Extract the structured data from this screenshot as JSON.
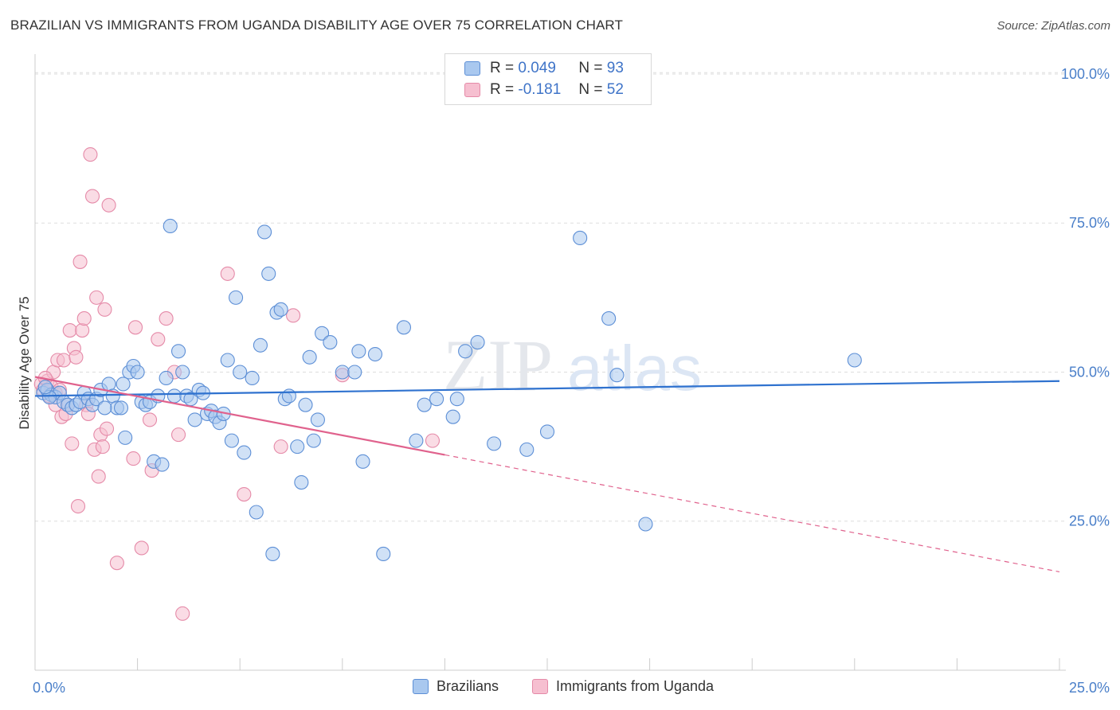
{
  "header": {
    "title": "BRAZILIAN VS IMMIGRANTS FROM UGANDA DISABILITY AGE OVER 75 CORRELATION CHART",
    "source": "Source: ZipAtlas.com"
  },
  "watermark": {
    "zip": "ZIP",
    "atlas": "atlas"
  },
  "colors": {
    "blue_fill": "#a9c8ef",
    "blue_stroke": "#5d8fd6",
    "blue_line": "#2f72cf",
    "pink_fill": "#f6bfd0",
    "pink_stroke": "#e58aa8",
    "pink_line": "#e0628d",
    "tick_text": "#4a7fc9",
    "grid": "#dddddd"
  },
  "legend": {
    "r_label": "R =",
    "n_label": "N =",
    "rows": [
      {
        "r": "0.049",
        "n": "93",
        "swatch": "blue"
      },
      {
        "r": "-0.181",
        "n": "52",
        "swatch": "pink"
      }
    ]
  },
  "chart_data": {
    "type": "scatter",
    "title": "BRAZILIAN VS IMMIGRANTS FROM UGANDA DISABILITY AGE OVER 75 CORRELATION CHART",
    "xlabel": "",
    "ylabel": "Disability Age Over 75",
    "xlim": [
      0,
      25
    ],
    "ylim": [
      0,
      102
    ],
    "x_ticks": [
      {
        "value": 0,
        "label": "0.0%"
      },
      {
        "value": 25,
        "label": "25.0%"
      }
    ],
    "y_ticks": [
      {
        "value": 25,
        "label": "25.0%"
      },
      {
        "value": 50,
        "label": "50.0%"
      },
      {
        "value": 75,
        "label": "75.0%"
      },
      {
        "value": 100,
        "label": "100.0%"
      }
    ],
    "grid": true,
    "legend_position": "top-center",
    "series": [
      {
        "name": "Brazilians",
        "color": "blue",
        "r": 0.049,
        "n": 93,
        "trend": {
          "x_start": 0,
          "y_start": 46.0,
          "x_end": 25,
          "y_end": 48.5,
          "dash_from_x": 25
        },
        "points": [
          [
            0.2,
            46.5
          ],
          [
            0.3,
            47.0
          ],
          [
            0.4,
            46.2
          ],
          [
            0.5,
            45.8
          ],
          [
            0.6,
            46.5
          ],
          [
            0.7,
            45.0
          ],
          [
            0.8,
            44.5
          ],
          [
            0.9,
            44.0
          ],
          [
            1.0,
            44.5
          ],
          [
            1.1,
            45.0
          ],
          [
            1.2,
            46.5
          ],
          [
            1.3,
            45.5
          ],
          [
            1.4,
            44.5
          ],
          [
            1.5,
            45.5
          ],
          [
            1.6,
            47.0
          ],
          [
            1.8,
            48.0
          ],
          [
            1.9,
            46.0
          ],
          [
            2.0,
            44.0
          ],
          [
            2.1,
            44.0
          ],
          [
            2.2,
            39.0
          ],
          [
            2.3,
            50.0
          ],
          [
            2.4,
            51.0
          ],
          [
            2.5,
            50.0
          ],
          [
            2.6,
            45.0
          ],
          [
            2.7,
            44.5
          ],
          [
            2.8,
            45.0
          ],
          [
            2.9,
            35.0
          ],
          [
            3.0,
            46.0
          ],
          [
            3.1,
            34.5
          ],
          [
            3.2,
            49.0
          ],
          [
            3.3,
            74.5
          ],
          [
            3.4,
            46.0
          ],
          [
            3.5,
            53.5
          ],
          [
            3.6,
            50.0
          ],
          [
            3.7,
            46.0
          ],
          [
            3.8,
            45.5
          ],
          [
            3.9,
            42.0
          ],
          [
            4.0,
            47.0
          ],
          [
            4.1,
            46.5
          ],
          [
            4.2,
            43.0
          ],
          [
            4.3,
            43.5
          ],
          [
            4.4,
            42.5
          ],
          [
            4.5,
            41.5
          ],
          [
            4.6,
            43.0
          ],
          [
            4.7,
            52.0
          ],
          [
            4.8,
            38.5
          ],
          [
            4.9,
            62.5
          ],
          [
            5.0,
            50.0
          ],
          [
            5.1,
            36.5
          ],
          [
            5.3,
            49.0
          ],
          [
            5.4,
            26.5
          ],
          [
            5.5,
            54.5
          ],
          [
            5.6,
            73.5
          ],
          [
            5.7,
            66.5
          ],
          [
            5.8,
            19.5
          ],
          [
            5.9,
            60.0
          ],
          [
            6.0,
            60.5
          ],
          [
            6.1,
            45.5
          ],
          [
            6.2,
            46.0
          ],
          [
            6.4,
            37.5
          ],
          [
            6.5,
            31.5
          ],
          [
            6.6,
            44.5
          ],
          [
            6.7,
            52.5
          ],
          [
            6.8,
            38.5
          ],
          [
            6.9,
            42.0
          ],
          [
            7.0,
            56.5
          ],
          [
            7.2,
            55.0
          ],
          [
            7.5,
            50.0
          ],
          [
            7.8,
            50.0
          ],
          [
            7.9,
            53.5
          ],
          [
            8.0,
            35.0
          ],
          [
            8.3,
            53.0
          ],
          [
            8.5,
            19.5
          ],
          [
            9.0,
            57.5
          ],
          [
            9.3,
            38.5
          ],
          [
            9.5,
            44.5
          ],
          [
            9.8,
            45.5
          ],
          [
            10.2,
            42.5
          ],
          [
            10.3,
            45.5
          ],
          [
            10.5,
            53.5
          ],
          [
            10.8,
            55.0
          ],
          [
            11.2,
            38.0
          ],
          [
            12.0,
            37.0
          ],
          [
            12.5,
            40.0
          ],
          [
            13.3,
            72.5
          ],
          [
            14.0,
            59.0
          ],
          [
            14.2,
            49.5
          ],
          [
            14.9,
            24.5
          ],
          [
            20.0,
            52.0
          ],
          [
            0.35,
            45.8
          ],
          [
            1.7,
            44.0
          ],
          [
            0.25,
            47.5
          ],
          [
            2.15,
            48.0
          ]
        ]
      },
      {
        "name": "Immigrants from Uganda",
        "color": "pink",
        "r": -0.181,
        "n": 52,
        "trend": {
          "x_start": 0,
          "y_start": 49.2,
          "x_end": 25,
          "y_end": 16.5,
          "dash_from_x": 10
        },
        "points": [
          [
            0.15,
            48.0
          ],
          [
            0.2,
            47.0
          ],
          [
            0.3,
            48.5
          ],
          [
            0.35,
            46.0
          ],
          [
            0.4,
            47.5
          ],
          [
            0.45,
            50.0
          ],
          [
            0.5,
            46.5
          ],
          [
            0.55,
            52.0
          ],
          [
            0.6,
            47.0
          ],
          [
            0.65,
            42.5
          ],
          [
            0.7,
            52.0
          ],
          [
            0.75,
            43.0
          ],
          [
            0.8,
            44.5
          ],
          [
            0.85,
            57.0
          ],
          [
            0.9,
            38.0
          ],
          [
            0.95,
            54.0
          ],
          [
            1.0,
            52.5
          ],
          [
            1.05,
            27.5
          ],
          [
            1.1,
            68.5
          ],
          [
            1.15,
            57.0
          ],
          [
            1.2,
            59.0
          ],
          [
            1.25,
            44.5
          ],
          [
            1.3,
            43.0
          ],
          [
            1.35,
            86.5
          ],
          [
            1.4,
            79.5
          ],
          [
            1.45,
            37.0
          ],
          [
            1.5,
            62.5
          ],
          [
            1.55,
            32.5
          ],
          [
            1.6,
            39.5
          ],
          [
            1.65,
            37.5
          ],
          [
            1.7,
            60.5
          ],
          [
            1.75,
            40.5
          ],
          [
            1.8,
            78.0
          ],
          [
            2.0,
            18.0
          ],
          [
            2.4,
            35.5
          ],
          [
            2.45,
            57.5
          ],
          [
            2.6,
            20.5
          ],
          [
            2.8,
            42.0
          ],
          [
            2.85,
            33.5
          ],
          [
            3.0,
            55.5
          ],
          [
            3.2,
            59.0
          ],
          [
            3.4,
            50.0
          ],
          [
            3.5,
            39.5
          ],
          [
            3.6,
            9.5
          ],
          [
            4.7,
            66.5
          ],
          [
            5.1,
            29.5
          ],
          [
            6.0,
            37.5
          ],
          [
            6.3,
            59.5
          ],
          [
            7.5,
            49.5
          ],
          [
            9.7,
            38.5
          ],
          [
            0.25,
            49.0
          ],
          [
            0.5,
            44.5
          ]
        ]
      }
    ]
  },
  "bottom_legend": [
    {
      "label": "Brazilians",
      "swatch": "blue"
    },
    {
      "label": "Immigrants from Uganda",
      "swatch": "pink"
    }
  ]
}
